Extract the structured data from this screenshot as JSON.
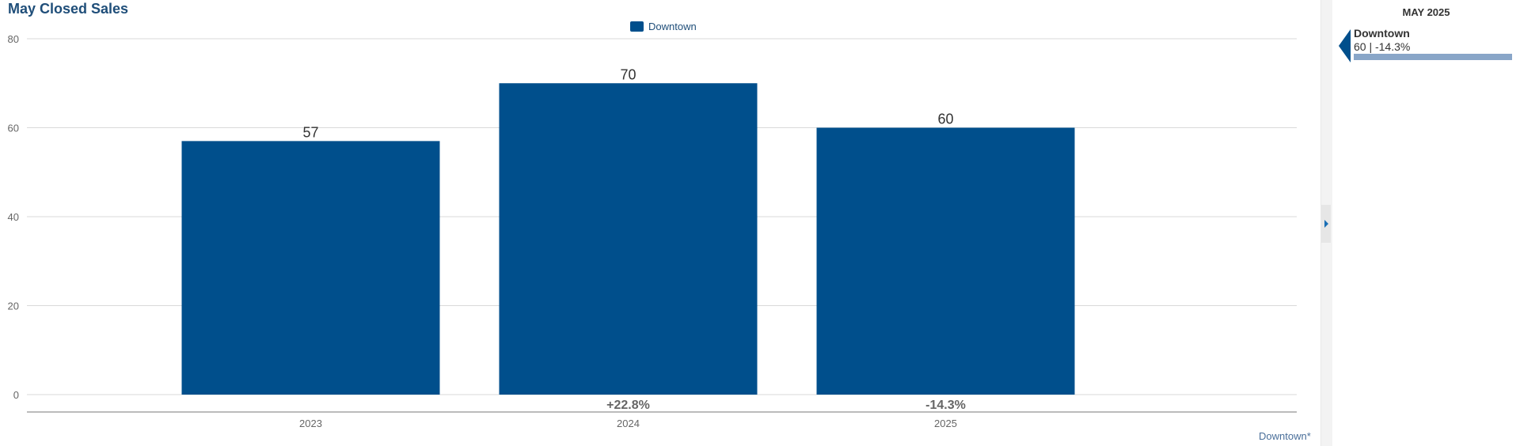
{
  "chart_data": {
    "type": "bar",
    "title": "May Closed Sales",
    "categories": [
      "2023",
      "2024",
      "2025"
    ],
    "series": [
      {
        "name": "Downtown",
        "values": [
          57,
          70,
          60
        ]
      }
    ],
    "value_labels": [
      "57",
      "70",
      "60"
    ],
    "pct_change_labels": [
      "",
      "+22.8%",
      "-14.3%"
    ],
    "yticks": [
      0,
      20,
      40,
      60,
      80
    ],
    "ylim": [
      0,
      80
    ],
    "grid": true,
    "legend": "top-center",
    "bar_color": "#004f8c"
  },
  "footnote": "Downtown*",
  "side_panel": {
    "period": "MAY 2025",
    "series_name": "Downtown",
    "value_text": "60 | -14.3%",
    "marker_color": "#004f8c",
    "bar_color": "#89a6c8"
  }
}
